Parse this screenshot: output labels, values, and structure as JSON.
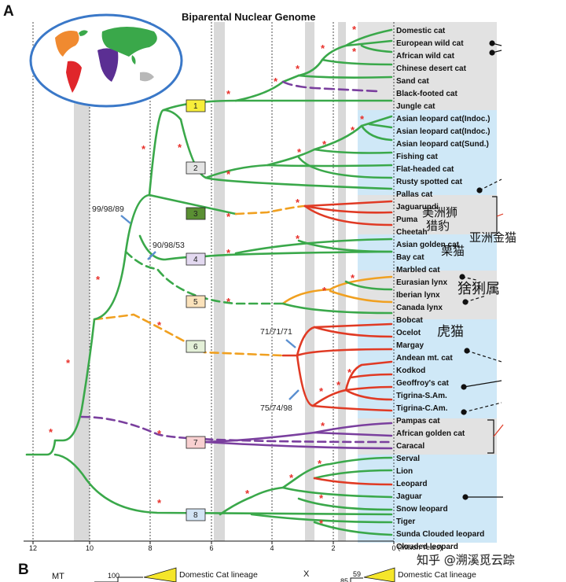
{
  "panel_a_label": "A",
  "panel_b_label": "B",
  "title": "Biparental Nuclear Genome",
  "taxa": [
    "Domestic cat",
    "European wild cat",
    "African wild cat",
    "Chinese desert cat",
    "Sand cat",
    "Black-footed cat",
    "Jungle cat",
    "Asian leopard cat(Indoc.)",
    "Asian leopard cat(Indoc.)",
    "Asian leopard cat(Sund.)",
    "Fishing cat",
    "Flat-headed cat",
    "Rusty spotted cat",
    "Pallas cat",
    "Jaguarundi",
    "Puma",
    "Cheetah",
    "Asian golden cat",
    "Bay cat",
    "Marbled cat",
    "Eurasian lynx",
    "Iberian lynx",
    "Canada lynx",
    "Bobcat",
    "Ocelot",
    "Margay",
    "Andean mt. cat",
    "Kodkod",
    "Geoffroy's cat",
    "Tigrina-S.Am.",
    "Tigrina-C.Am.",
    "Pampas cat",
    "African golden cat",
    "Caracal",
    "Serval",
    "Lion",
    "Leopard",
    "Jaguar",
    "Snow leopard",
    "Tiger",
    "Sunda Clouded leopard",
    "Clouded leopard"
  ],
  "lineage_numbers": [
    "1",
    "2",
    "3",
    "4",
    "5",
    "6",
    "7",
    "8"
  ],
  "support_values": [
    "99/98/89",
    "90/98/53",
    "71/71/71",
    "75/74/98"
  ],
  "axis_ticks": [
    "12",
    "10",
    "8",
    "6",
    "4",
    "2",
    "0"
  ],
  "axis_unit": "(Million Years)",
  "chinese_labels": {
    "puma": "美洲狮",
    "cheetah": "猎豹",
    "asian_golden": "亚洲金猫",
    "chestnut": "栗猫",
    "lynx": "猞猁属",
    "tiger_cat": "虎猫"
  },
  "panel_b": {
    "mt_label": "MT",
    "mt_value": "100",
    "mt_lineage": "Domestic Cat lineage",
    "x_label": "X",
    "x_value": "59",
    "x_sub": "85",
    "x_lineage": "Domestic Cat lineage"
  },
  "watermark": "知乎 @溯溪觅云踪",
  "colors": {
    "green": "#3aa84a",
    "orange": "#f0a020",
    "red": "#e03a24",
    "purple": "#7a3f9e",
    "star": "#e8302a",
    "gray_band": "#d9d9d9",
    "blue_region": "#cfe8f7",
    "gray_region": "#e2e2e2"
  }
}
